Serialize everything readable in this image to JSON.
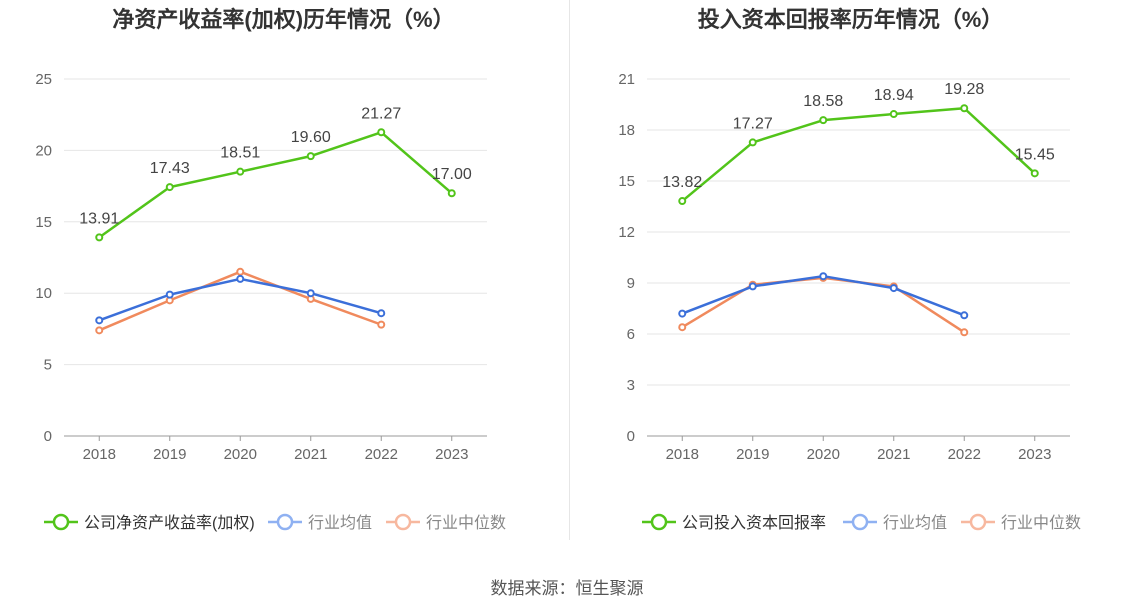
{
  "source_text": "数据来源：恒生聚源",
  "colors": {
    "company": "#52c41a",
    "avg": "#3b6fd9",
    "median": "#f08a5d",
    "avg_legend": "#8fb1f2",
    "median_legend": "#f7b89f",
    "grid": "#e6e6e6",
    "axis": "#999999"
  },
  "chart_data": [
    {
      "type": "line",
      "title": "净资产收益率(加权)历年情况（%）",
      "categories": [
        "2018",
        "2019",
        "2020",
        "2021",
        "2022",
        "2023"
      ],
      "ylim": [
        0,
        25
      ],
      "yticks": [
        "0",
        "5",
        "10",
        "15",
        "20",
        "25"
      ],
      "series": [
        {
          "name": "公司净资产收益率(加权)",
          "key": "company",
          "values": [
            13.91,
            17.43,
            18.51,
            19.6,
            21.27,
            17.0
          ],
          "labels": [
            "13.91",
            "17.43",
            "18.51",
            "19.60",
            "21.27",
            "17.00"
          ]
        },
        {
          "name": "行业均值",
          "key": "avg",
          "values": [
            8.1,
            9.9,
            11.0,
            10.0,
            8.6,
            null
          ]
        },
        {
          "name": "行业中位数",
          "key": "median",
          "values": [
            7.4,
            9.5,
            11.5,
            9.6,
            7.8,
            null
          ]
        }
      ]
    },
    {
      "type": "line",
      "title": "投入资本回报率历年情况（%）",
      "categories": [
        "2018",
        "2019",
        "2020",
        "2021",
        "2022",
        "2023"
      ],
      "ylim": [
        0,
        21
      ],
      "yticks": [
        "0",
        "3",
        "6",
        "9",
        "12",
        "15",
        "18",
        "21"
      ],
      "series": [
        {
          "name": "公司投入资本回报率",
          "key": "company",
          "values": [
            13.82,
            17.27,
            18.58,
            18.94,
            19.28,
            15.45
          ],
          "labels": [
            "13.82",
            "17.27",
            "18.58",
            "18.94",
            "19.28",
            "15.45"
          ]
        },
        {
          "name": "行业均值",
          "key": "avg",
          "values": [
            7.2,
            8.8,
            9.4,
            8.7,
            7.1,
            null
          ]
        },
        {
          "name": "行业中位数",
          "key": "median",
          "values": [
            6.4,
            8.9,
            9.3,
            8.8,
            6.1,
            null
          ]
        }
      ]
    }
  ]
}
